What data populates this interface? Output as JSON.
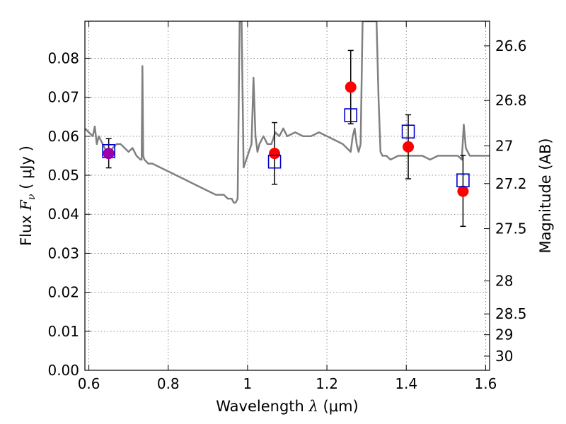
{
  "chart_data": {
    "type": "scatter",
    "xlabel": "Wavelength",
    "xlabel_symbol": "λ",
    "xlabel_unit": "(μm)",
    "ylabel": "Flux",
    "ylabel_symbol": "F",
    "ylabel_subscript": "ν",
    "ylabel_unit": "( μJy )",
    "y2label": "Magnitude (AB)",
    "xlim": [
      0.59,
      1.61
    ],
    "ylim": [
      0.0,
      0.0895
    ],
    "grid": true,
    "x_ticks": [
      {
        "v": 0.6,
        "label": "0.6"
      },
      {
        "v": 0.8,
        "label": "0.8"
      },
      {
        "v": 1.0,
        "label": "1"
      },
      {
        "v": 1.2,
        "label": "1.2"
      },
      {
        "v": 1.4,
        "label": "1.4"
      },
      {
        "v": 1.6,
        "label": "1.6"
      }
    ],
    "y_ticks": [
      {
        "v": 0.0,
        "label": "0.00"
      },
      {
        "v": 0.01,
        "label": "0.01"
      },
      {
        "v": 0.02,
        "label": "0.02"
      },
      {
        "v": 0.03,
        "label": "0.03"
      },
      {
        "v": 0.04,
        "label": "0.04"
      },
      {
        "v": 0.05,
        "label": "0.05"
      },
      {
        "v": 0.06,
        "label": "0.06"
      },
      {
        "v": 0.07,
        "label": "0.07"
      },
      {
        "v": 0.08,
        "label": "0.08"
      }
    ],
    "y2_ticks": [
      {
        "mag": 26.6,
        "label": "26.6"
      },
      {
        "mag": 26.8,
        "label": "26.8"
      },
      {
        "mag": 27.0,
        "label": "27"
      },
      {
        "mag": 27.2,
        "label": "27.2"
      },
      {
        "mag": 27.5,
        "label": "27.5"
      },
      {
        "mag": 28.0,
        "label": "28"
      },
      {
        "mag": 28.5,
        "label": "28.5"
      },
      {
        "mag": 29.0,
        "label": "29"
      },
      {
        "mag": 30.0,
        "label": "30"
      }
    ],
    "series": [
      {
        "kind": "line",
        "color": "#808080",
        "x": [
          0.59,
          0.6,
          0.61,
          0.615,
          0.62,
          0.625,
          0.63,
          0.64,
          0.65,
          0.66,
          0.67,
          0.68,
          0.69,
          0.7,
          0.71,
          0.72,
          0.73,
          0.733,
          0.735,
          0.737,
          0.74,
          0.75,
          0.76,
          0.78,
          0.8,
          0.82,
          0.84,
          0.86,
          0.88,
          0.9,
          0.92,
          0.94,
          0.95,
          0.96,
          0.965,
          0.97,
          0.975,
          0.98,
          0.985,
          0.99,
          1.0,
          1.01,
          1.015,
          1.02,
          1.025,
          1.03,
          1.04,
          1.05,
          1.06,
          1.07,
          1.08,
          1.09,
          1.1,
          1.12,
          1.14,
          1.16,
          1.18,
          1.2,
          1.22,
          1.24,
          1.25,
          1.26,
          1.265,
          1.27,
          1.275,
          1.28,
          1.285,
          1.29,
          1.3,
          1.31,
          1.32,
          1.325,
          1.33,
          1.335,
          1.34,
          1.35,
          1.36,
          1.38,
          1.4,
          1.42,
          1.44,
          1.46,
          1.48,
          1.5,
          1.52,
          1.53,
          1.54,
          1.545,
          1.55,
          1.56,
          1.57,
          1.58,
          1.6,
          1.61
        ],
        "y": [
          0.062,
          0.061,
          0.06,
          0.0625,
          0.058,
          0.06,
          0.059,
          0.057,
          0.055,
          0.057,
          0.058,
          0.058,
          0.057,
          0.056,
          0.057,
          0.055,
          0.054,
          0.054,
          0.078,
          0.055,
          0.054,
          0.053,
          0.053,
          0.052,
          0.051,
          0.05,
          0.049,
          0.048,
          0.047,
          0.046,
          0.045,
          0.045,
          0.044,
          0.044,
          0.043,
          0.043,
          0.044,
          0.0895,
          0.0895,
          0.052,
          0.055,
          0.058,
          0.075,
          0.06,
          0.056,
          0.058,
          0.06,
          0.058,
          0.058,
          0.061,
          0.06,
          0.062,
          0.06,
          0.061,
          0.06,
          0.06,
          0.061,
          0.06,
          0.059,
          0.058,
          0.057,
          0.056,
          0.06,
          0.062,
          0.058,
          0.056,
          0.058,
          0.0895,
          0.0895,
          0.0895,
          0.0895,
          0.0895,
          0.07,
          0.056,
          0.055,
          0.055,
          0.054,
          0.055,
          0.055,
          0.055,
          0.055,
          0.054,
          0.055,
          0.055,
          0.055,
          0.055,
          0.054,
          0.063,
          0.057,
          0.055,
          0.055,
          0.055,
          0.055,
          0.055
        ]
      },
      {
        "kind": "errorbar-points",
        "marker": "filled-circle",
        "color": "#ff0000",
        "points": [
          {
            "x": 0.65,
            "y": 0.0556,
            "ylo": 0.0519,
            "yhi": 0.0594
          },
          {
            "x": 1.068,
            "y": 0.0556,
            "ylo": 0.0477,
            "yhi": 0.0635
          },
          {
            "x": 1.26,
            "y": 0.0726,
            "ylo": 0.0632,
            "yhi": 0.082
          },
          {
            "x": 1.405,
            "y": 0.0573,
            "ylo": 0.0491,
            "yhi": 0.0655
          },
          {
            "x": 1.543,
            "y": 0.0459,
            "ylo": 0.0369,
            "yhi": 0.0551
          }
        ]
      },
      {
        "kind": "points",
        "marker": "open-square",
        "color": "#0000cc",
        "points": [
          {
            "x": 0.65,
            "y": 0.0562
          },
          {
            "x": 1.068,
            "y": 0.0535
          },
          {
            "x": 1.26,
            "y": 0.0654
          },
          {
            "x": 1.405,
            "y": 0.0612
          },
          {
            "x": 1.543,
            "y": 0.0487
          }
        ]
      }
    ]
  }
}
